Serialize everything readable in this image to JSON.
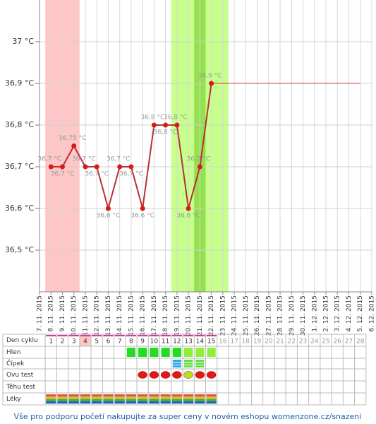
{
  "chart_data": {
    "type": "line",
    "categories": [
      "7. 11. 2015",
      "8. 11. 2015",
      "9. 11. 2015",
      "10. 11. 2015",
      "11. 11. 2015",
      "12. 11. 2015",
      "13. 11. 2015",
      "14. 11. 2015",
      "15. 11. 2015",
      "16. 11. 2015",
      "17. 11. 2015",
      "18. 11. 2015",
      "19. 11. 2015",
      "20. 11. 2015",
      "21. 11. 2015",
      "22. 11. 2015",
      "23. 11. 2015",
      "24. 11. 2015",
      "25. 11. 2015",
      "26. 11. 2015",
      "27. 11. 2015",
      "28. 11. 2015",
      "29. 11. 2015",
      "30. 11. 2015",
      "1. 12. 2015",
      "2. 12. 2015",
      "3. 12. 2015",
      "4. 12. 2015",
      "5. 12. 2015",
      "6. 12. 2015"
    ],
    "series": [
      {
        "color": "#b83030",
        "line_width": 2,
        "markers": true,
        "values": [
          null,
          36.7,
          36.7,
          36.75,
          36.7,
          36.7,
          36.6,
          36.7,
          36.7,
          36.6,
          36.8,
          36.8,
          36.8,
          36.6,
          36.7,
          36.9,
          null,
          null,
          null,
          null,
          null,
          null,
          null,
          null,
          null,
          null,
          null,
          null,
          null,
          null
        ],
        "value_labels": [
          null,
          "36,7 °C",
          "36,7 °C",
          "36,75 °C",
          "36,7 °C",
          "36,7 °C",
          "36,6 °C",
          "36,7 °C",
          "36,7 °C",
          "36,6 °C",
          "36,8 °C",
          "36,8 °C",
          "36,8 °C",
          "36,6 °C",
          "36,7 °C",
          "36,9 °C",
          null,
          null,
          null,
          null,
          null,
          null,
          null,
          null,
          null,
          null,
          null,
          null,
          null,
          null
        ]
      },
      {
        "color": "#c84040",
        "line_width": 1,
        "markers": false,
        "values": [
          null,
          null,
          null,
          null,
          null,
          null,
          null,
          null,
          null,
          null,
          null,
          null,
          null,
          null,
          null,
          36.9,
          36.9,
          36.9,
          36.9,
          36.9,
          36.9,
          36.9,
          36.9,
          36.9,
          36.9,
          36.9,
          36.9,
          36.9,
          36.9,
          null
        ]
      }
    ],
    "ylim": [
      36.4,
      37.1
    ],
    "yticks": [
      {
        "value": 36.5,
        "label": "36,5 °C"
      },
      {
        "value": 36.6,
        "label": "36,6 °C"
      },
      {
        "value": 36.7,
        "label": "36,7 °C"
      },
      {
        "value": 36.8,
        "label": "36,8 °C"
      },
      {
        "value": 36.9,
        "label": "36,9 °C"
      },
      {
        "value": 37,
        "label": "37 °C"
      }
    ],
    "grid": true,
    "bands": [
      {
        "start": "8. 11. 2015",
        "end": "10. 11. 2015",
        "color": "#ffc6c6"
      },
      {
        "start": "19. 11. 2015",
        "end": "23. 11. 2015",
        "color": "#c6ff8c"
      },
      {
        "start": "21. 11. 2015",
        "end": "21. 11. 2015",
        "color": "#94e04e"
      }
    ]
  },
  "cycle_table": {
    "row_labels": [
      "Den cyklu",
      "Hlen",
      "Čípek",
      "Ovu test",
      "Těhu test",
      "Léky"
    ],
    "cycle_days": [
      1,
      2,
      3,
      4,
      5,
      6,
      7,
      8,
      9,
      10,
      11,
      12,
      13,
      14,
      15,
      16,
      17,
      18,
      19,
      20,
      21,
      22,
      23,
      24,
      25,
      26,
      27,
      28
    ]
  },
  "footer": "Vše pro podporu početí nakupujte za super ceny v novém eshopu womenzone.cz/snazeni"
}
